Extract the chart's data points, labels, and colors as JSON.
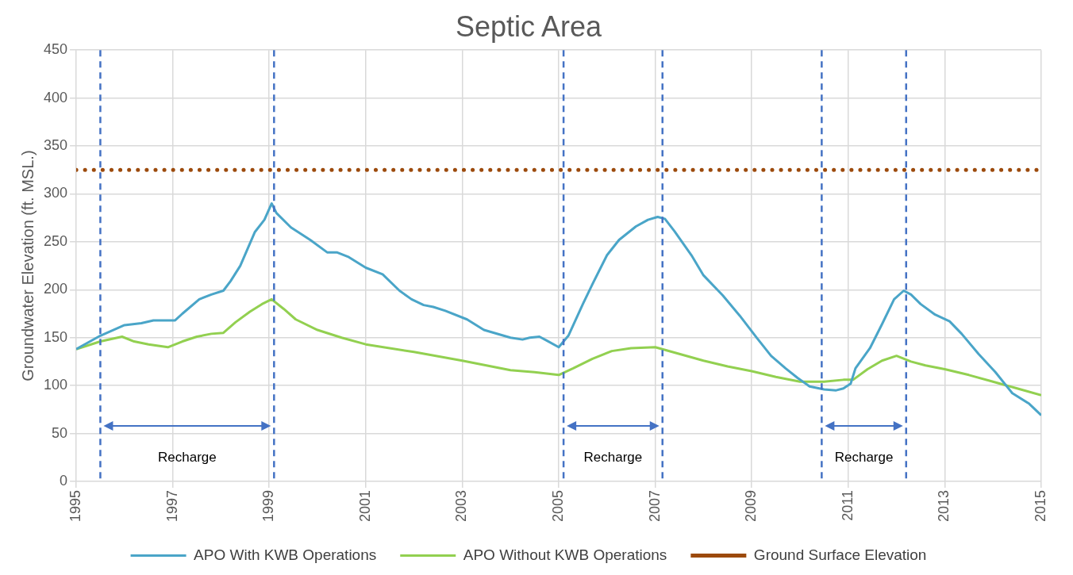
{
  "chart_data": {
    "type": "line",
    "title": "Septic Area",
    "ylabel": "Groundwater Elevation (ft. MSL.)",
    "xlim": [
      1995,
      2015
    ],
    "xticks": [
      1995,
      1997,
      1999,
      2001,
      2003,
      2005,
      2007,
      2009,
      2011,
      2013,
      2015
    ],
    "ylim": [
      0,
      450
    ],
    "yticks": [
      0,
      50,
      100,
      150,
      200,
      250,
      300,
      350,
      400,
      450
    ],
    "grid": true,
    "legend": "bottom",
    "marker": "none",
    "series": [
      {
        "name": "APO With KWB Operations",
        "color": "#4aa5c8",
        "line_style": "solid",
        "x": [
          1995,
          1995.5,
          1996.0,
          1996.35,
          1996.6,
          1997.05,
          1997.2,
          1997.55,
          1997.8,
          1998.05,
          1998.2,
          1998.4,
          1998.7,
          1998.9,
          1999.05,
          1999.15,
          1999.45,
          1999.85,
          2000.2,
          2000.4,
          2000.65,
          2001.0,
          2001.35,
          2001.7,
          2001.95,
          2002.2,
          2002.4,
          2002.65,
          2003.1,
          2003.45,
          2004.0,
          2004.25,
          2004.4,
          2004.6,
          2004.75,
          2005.0,
          2005.2,
          2005.5,
          2005.7,
          2006.0,
          2006.25,
          2006.6,
          2006.85,
          2007.05,
          2007.2,
          2007.4,
          2007.75,
          2008.0,
          2008.4,
          2008.75,
          2009.1,
          2009.4,
          2009.7,
          2009.95,
          2010.2,
          2010.5,
          2010.75,
          2010.9,
          2011.05,
          2011.15,
          2011.45,
          2011.7,
          2011.95,
          2012.15,
          2012.3,
          2012.5,
          2012.8,
          2013.1,
          2013.35,
          2013.7,
          2014.05,
          2014.4,
          2014.75,
          2015
        ],
        "values": [
          138,
          152,
          163,
          165,
          168,
          168,
          175,
          190,
          195,
          199,
          209,
          225,
          260,
          273,
          290,
          280,
          265,
          252,
          239,
          239,
          234,
          223,
          216,
          199,
          190,
          184,
          182,
          178,
          169,
          158,
          150,
          148,
          150,
          151,
          147,
          140,
          152,
          185,
          206,
          236,
          252,
          266,
          273,
          276,
          274,
          261,
          236,
          215,
          194,
          173,
          150,
          131,
          118,
          108,
          99,
          96,
          95,
          97,
          102,
          118,
          139,
          164,
          190,
          199,
          195,
          185,
          174,
          167,
          154,
          133,
          114,
          92,
          81,
          69
        ]
      },
      {
        "name": "APO Without KWB Operations",
        "color": "#92d050",
        "line_style": "solid",
        "x": [
          1995,
          1995.5,
          1995.95,
          1996.2,
          1996.5,
          1996.9,
          1997.2,
          1997.5,
          1997.8,
          1998.05,
          1998.3,
          1998.6,
          1998.85,
          1999.05,
          1999.3,
          1999.55,
          2000,
          2000.5,
          2001,
          2002,
          2003,
          2003.5,
          2004,
          2004.5,
          2005,
          2005.3,
          2005.7,
          2006.1,
          2006.5,
          2007,
          2007.5,
          2008,
          2008.5,
          2009,
          2009.5,
          2010,
          2010.5,
          2010.9,
          2011.1,
          2011.4,
          2011.7,
          2012.0,
          2012.3,
          2012.6,
          2013,
          2013.5,
          2014,
          2014.5,
          2015
        ],
        "values": [
          138,
          146,
          151,
          146,
          143,
          140,
          146,
          151,
          154,
          155,
          166,
          177,
          185,
          190,
          180,
          169,
          158,
          150,
          143,
          135,
          126,
          121,
          116,
          114,
          111,
          118,
          128,
          136,
          139,
          140,
          133,
          126,
          120,
          115,
          109,
          104,
          104,
          106,
          106,
          117,
          126,
          131,
          125,
          121,
          117,
          111,
          104,
          97,
          90
        ]
      },
      {
        "name": "Ground Surface Elevation",
        "color": "#9c4a0c",
        "line_style": "dotted",
        "x": [
          1995,
          2015
        ],
        "values": [
          325,
          325
        ]
      }
    ],
    "ref_lines": [
      {
        "axis": "x",
        "value": 1995.5,
        "color": "#4472c4",
        "line_style": "dashed"
      },
      {
        "axis": "x",
        "value": 1999.1,
        "color": "#4472c4",
        "line_style": "dashed"
      },
      {
        "axis": "x",
        "value": 2005.1,
        "color": "#4472c4",
        "line_style": "dashed"
      },
      {
        "axis": "x",
        "value": 2007.15,
        "color": "#4472c4",
        "line_style": "dashed"
      },
      {
        "axis": "x",
        "value": 2010.45,
        "color": "#4472c4",
        "line_style": "dashed"
      },
      {
        "axis": "x",
        "value": 2012.2,
        "color": "#4472c4",
        "line_style": "dashed"
      }
    ],
    "annotations": [
      "Recharge",
      "Recharge",
      "Recharge"
    ]
  }
}
